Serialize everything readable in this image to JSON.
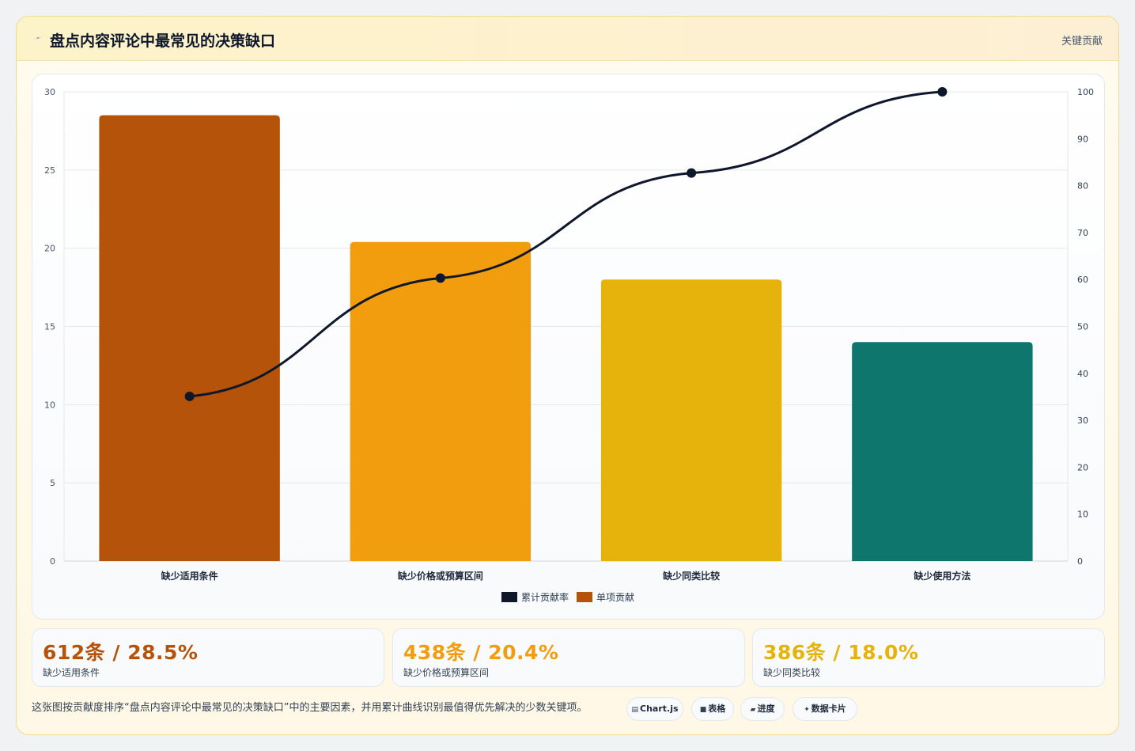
{
  "header": {
    "icon": "lightning-icon",
    "title": "盘点内容评论中最常见的决策缺口",
    "right_label": "关键贡献"
  },
  "colors": {
    "bar_1": "#b45309",
    "bar_2": "#f29d0e",
    "bar_3": "#e6b30c",
    "bar_4": "#0f766e",
    "line": "#0f172a"
  },
  "chart_data": {
    "type": "bar",
    "categories": [
      "缺少适用条件",
      "缺少价格或预算区间",
      "缺少同类比较",
      "缺少使用方法"
    ],
    "series": [
      {
        "name": "单项贡献",
        "type": "bar",
        "axis": "left",
        "values": [
          28.5,
          20.4,
          18.0,
          14.0
        ]
      },
      {
        "name": "累计贡献率",
        "type": "line",
        "axis": "right",
        "values": [
          35.1,
          60.3,
          82.7,
          100
        ]
      }
    ],
    "ylim": [
      0,
      30
    ],
    "y_ticks": [
      0,
      5,
      10,
      15,
      20,
      25,
      30
    ],
    "y2lim": [
      0,
      100
    ],
    "y2_ticks": [
      0,
      10,
      20,
      30,
      40,
      50,
      60,
      70,
      80,
      90,
      100
    ],
    "grid": true,
    "legend": {
      "position": "bottom",
      "entries": [
        {
          "label": "累计贡献率",
          "color": "#0f172a"
        },
        {
          "label": "单项贡献",
          "color": "#b45309"
        }
      ]
    }
  },
  "kpis": [
    {
      "value": "612条 / 28.5%",
      "label": "缺少适用条件",
      "color": "#b45309"
    },
    {
      "value": "438条 / 20.4%",
      "label": "缺少价格或预算区间",
      "color": "#f29d0e"
    },
    {
      "value": "386条 / 18.0%",
      "label": "缺少同类比较",
      "color": "#e6b30c"
    }
  ],
  "footnote": "这张图按贡献度排序“盘点内容评论中最常见的决策缺口”中的主要因素，并用累计曲线识别最值得优先解决的少数关键项。",
  "chips": [
    {
      "icon": "chart-icon",
      "glyph": "▤",
      "label": "Chart.js"
    },
    {
      "icon": "table-icon",
      "glyph": "■",
      "label": "表格"
    },
    {
      "icon": "progress-icon",
      "glyph": "▰",
      "label": "进度"
    },
    {
      "icon": "sparkle-icon",
      "glyph": "✦",
      "label": "数据卡片"
    }
  ]
}
